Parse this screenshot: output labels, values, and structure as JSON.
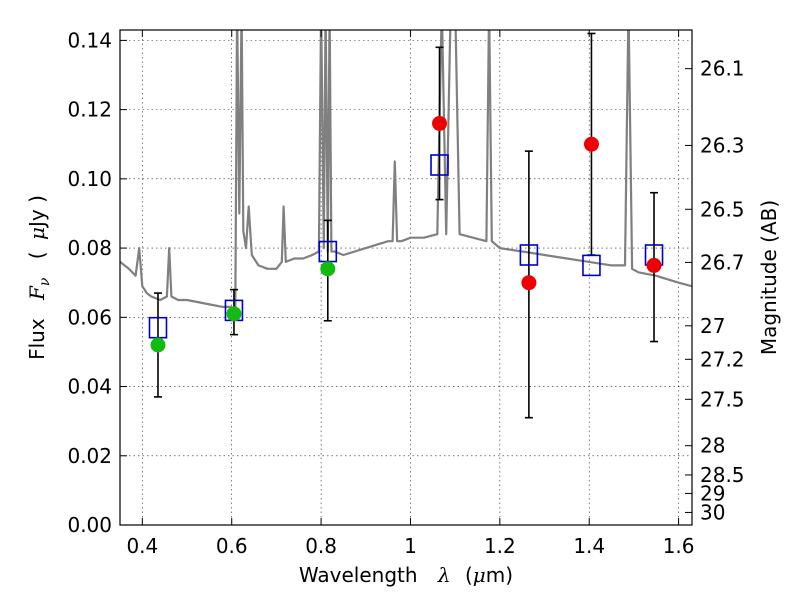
{
  "chart_data": {
    "type": "scatter",
    "title": "",
    "xlabel": {
      "text": "Wavelength",
      "symbol": "λ",
      "unit_open": "(",
      "unit_mu": "μ",
      "unit_rest": "m)"
    },
    "ylabel": {
      "text": "Flux",
      "symbol": "F",
      "symbol_sub": "ν",
      "unit_open": "(",
      "unit_mu": "μ",
      "unit_rest": "Jy )"
    },
    "y2label": "Magnitude (AB)",
    "xlim": [
      0.35,
      1.63
    ],
    "ylim": [
      0.0,
      0.143
    ],
    "grid": true,
    "xticks": [
      {
        "value": 0.4,
        "label": "0.4"
      },
      {
        "value": 0.6,
        "label": "0.6"
      },
      {
        "value": 0.8,
        "label": "0.8"
      },
      {
        "value": 1.0,
        "label": "1"
      },
      {
        "value": 1.2,
        "label": "1.2"
      },
      {
        "value": 1.4,
        "label": "1.4"
      },
      {
        "value": 1.6,
        "label": "1.6"
      }
    ],
    "yticks": [
      {
        "value": 0.0,
        "label": "0.00"
      },
      {
        "value": 0.02,
        "label": "0.02"
      },
      {
        "value": 0.04,
        "label": "0.04"
      },
      {
        "value": 0.06,
        "label": "0.06"
      },
      {
        "value": 0.08,
        "label": "0.08"
      },
      {
        "value": 0.1,
        "label": "0.10"
      },
      {
        "value": 0.12,
        "label": "0.12"
      },
      {
        "value": 0.14,
        "label": "0.14"
      }
    ],
    "y2ticks": [
      {
        "mag": 26.1,
        "label": "26.1"
      },
      {
        "mag": 26.3,
        "label": "26.3"
      },
      {
        "mag": 26.5,
        "label": "26.5"
      },
      {
        "mag": 26.7,
        "label": "26.7"
      },
      {
        "mag": 27.0,
        "label": "27"
      },
      {
        "mag": 27.2,
        "label": "27.2"
      },
      {
        "mag": 27.5,
        "label": "27.5"
      },
      {
        "mag": 28.0,
        "label": "28"
      },
      {
        "mag": 28.5,
        "label": "28.5"
      },
      {
        "mag": 29.0,
        "label": "29"
      },
      {
        "mag": 30.0,
        "label": "30"
      }
    ],
    "colors": {
      "spectrum": "#808080",
      "model_points": "#0000cc",
      "green_points": "#11bb11",
      "red_points": "#ee0000",
      "errorbars": "#000000"
    },
    "series": [
      {
        "kind": "line",
        "color": "#808080",
        "x": [
          0.35,
          0.37,
          0.385,
          0.393,
          0.4,
          0.41,
          0.42,
          0.44,
          0.455,
          0.46,
          0.465,
          0.48,
          0.5,
          0.54,
          0.58,
          0.598,
          0.608,
          0.612,
          0.617,
          0.622,
          0.626,
          0.632,
          0.638,
          0.645,
          0.66,
          0.68,
          0.7,
          0.712,
          0.716,
          0.721,
          0.74,
          0.76,
          0.78,
          0.795,
          0.8,
          0.806,
          0.81,
          0.815,
          0.819,
          0.823,
          0.83,
          0.85,
          0.9,
          0.95,
          0.96,
          0.965,
          0.97,
          0.98,
          1.0,
          1.03,
          1.06,
          1.07,
          1.08,
          1.09,
          1.1,
          1.11,
          1.14,
          1.17,
          1.176,
          1.182,
          1.2,
          1.25,
          1.3,
          1.35,
          1.4,
          1.45,
          1.48,
          1.488,
          1.496,
          1.51,
          1.55,
          1.6,
          1.63
        ],
        "y": [
          0.076,
          0.074,
          0.072,
          0.08,
          0.069,
          0.067,
          0.066,
          0.065,
          0.066,
          0.08,
          0.066,
          0.065,
          0.065,
          0.064,
          0.063,
          0.063,
          0.062,
          0.15,
          0.09,
          0.15,
          0.085,
          0.08,
          0.092,
          0.078,
          0.075,
          0.074,
          0.074,
          0.076,
          0.092,
          0.076,
          0.077,
          0.077,
          0.078,
          0.079,
          0.15,
          0.08,
          0.15,
          0.079,
          0.15,
          0.079,
          0.079,
          0.078,
          0.08,
          0.082,
          0.082,
          0.105,
          0.082,
          0.082,
          0.083,
          0.083,
          0.084,
          0.15,
          0.084,
          0.15,
          0.15,
          0.084,
          0.083,
          0.082,
          0.15,
          0.082,
          0.08,
          0.079,
          0.078,
          0.077,
          0.076,
          0.075,
          0.075,
          0.15,
          0.074,
          0.073,
          0.072,
          0.07,
          0.069
        ]
      },
      {
        "kind": "markers",
        "marker": "square",
        "color": "#0000cc",
        "x": [
          0.435,
          0.605,
          0.815,
          1.065,
          1.265,
          1.405,
          1.545
        ],
        "y": [
          0.057,
          0.062,
          0.079,
          0.104,
          0.078,
          0.075,
          0.078
        ]
      },
      {
        "kind": "markers",
        "marker": "circle",
        "color": "#11bb11",
        "x": [
          0.435,
          0.605,
          0.815
        ],
        "y": [
          0.052,
          0.061,
          0.074
        ],
        "yerr_low": [
          0.037,
          0.055,
          0.059
        ],
        "yerr_high": [
          0.067,
          0.068,
          0.088
        ]
      },
      {
        "kind": "markers",
        "marker": "circle",
        "color": "#ee0000",
        "x": [
          1.065,
          1.265,
          1.405,
          1.545
        ],
        "y": [
          0.116,
          0.07,
          0.11,
          0.075
        ],
        "yerr_low": [
          0.094,
          0.031,
          0.078,
          0.053
        ],
        "yerr_high": [
          0.138,
          0.108,
          0.142,
          0.096
        ]
      }
    ]
  }
}
